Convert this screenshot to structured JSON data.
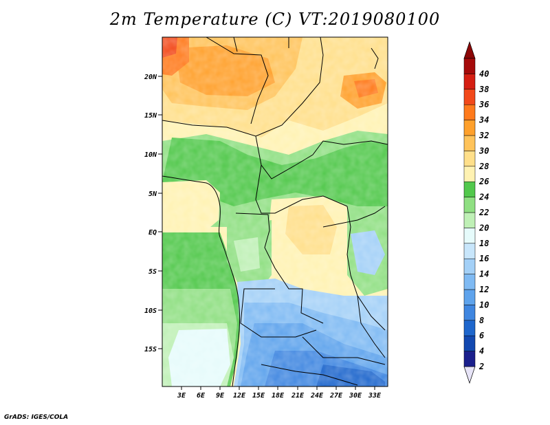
{
  "title": "2m Temperature (C) VT:2019080100",
  "footer": "GrADS: IGES/COLA",
  "map": {
    "variable": "2m Temperature",
    "unit": "C",
    "valid_time": "2019080100",
    "lat_labels": [
      "20N",
      "15N",
      "10N",
      "5N",
      "EQ",
      "5S",
      "10S",
      "15S"
    ],
    "lon_labels": [
      "3E",
      "6E",
      "9E",
      "12E",
      "15E",
      "18E",
      "21E",
      "24E",
      "27E",
      "30E",
      "33E"
    ]
  },
  "colorbar": {
    "levels": [
      "2",
      "4",
      "6",
      "8",
      "10",
      "12",
      "14",
      "16",
      "18",
      "20",
      "22",
      "24",
      "26",
      "28",
      "30",
      "32",
      "34",
      "36",
      "38",
      "40"
    ],
    "colors": [
      "#1a1f8c",
      "#1248b0",
      "#1e66cc",
      "#3f86e0",
      "#5ea3ec",
      "#7fbaf3",
      "#a3d0f7",
      "#c8e6fb",
      "#e6fbfb",
      "#bff0b6",
      "#8fdf82",
      "#52c84c",
      "#fff2b2",
      "#ffdf8a",
      "#ffc35a",
      "#ffa02b",
      "#ff7a1c",
      "#f2491a",
      "#d51e12",
      "#a50a0a"
    ],
    "under_color": "#e7e4f7",
    "over_color": "#8c0707"
  }
}
